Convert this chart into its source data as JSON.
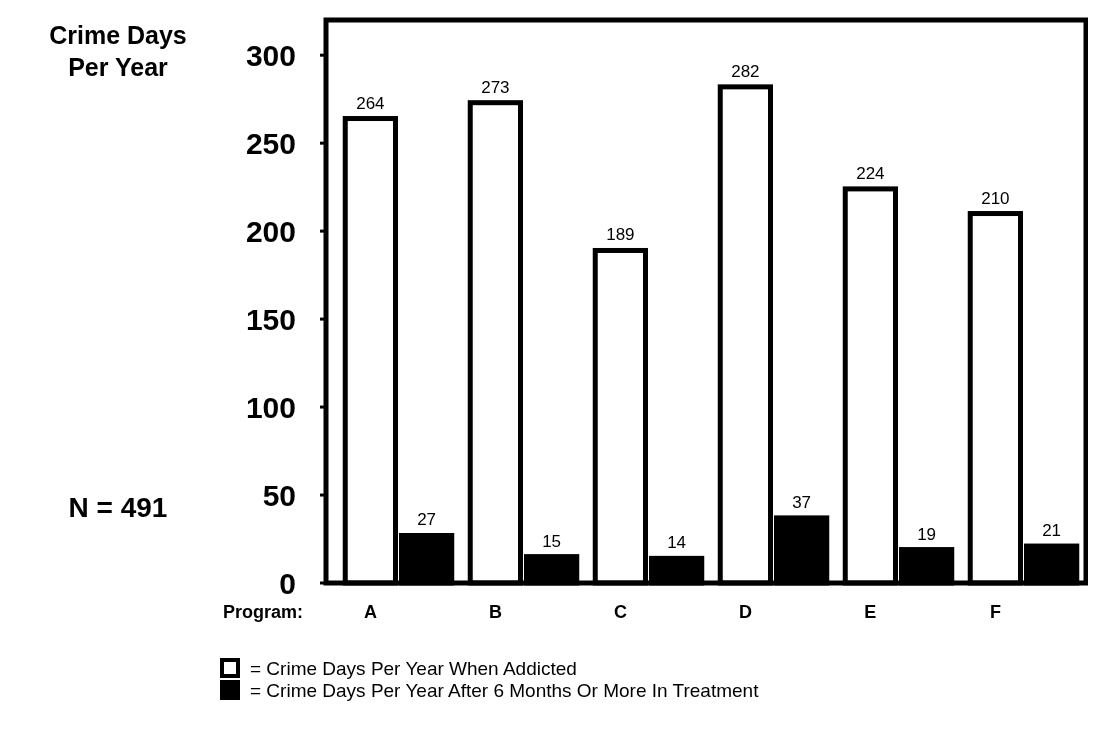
{
  "chart_data": {
    "type": "bar",
    "ylabel": "Crime Days Per Year",
    "xlabel": "Program:",
    "categories": [
      "A",
      "B",
      "C",
      "D",
      "E",
      "F"
    ],
    "series": [
      {
        "name": "= Crime Days Per Year When Addicted",
        "color": "#ffffff",
        "values": [
          264,
          273,
          189,
          282,
          224,
          210
        ]
      },
      {
        "name": "= Crime Days Per Year After 6 Months Or More In Treatment",
        "color": "#000000",
        "values": [
          27,
          15,
          14,
          37,
          19,
          21
        ]
      }
    ],
    "ylim": [
      0,
      320
    ],
    "yticks": [
      0,
      50,
      100,
      150,
      200,
      250,
      300
    ],
    "data_labels": true,
    "legend": "bottom",
    "grid": false,
    "annotations": [
      "N = 491"
    ]
  }
}
